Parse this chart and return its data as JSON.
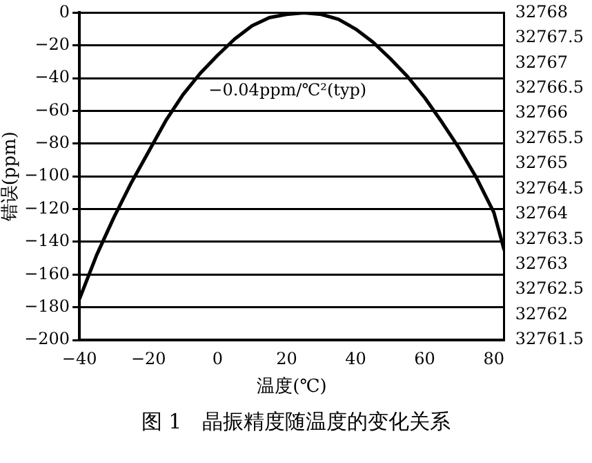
{
  "chart_data": {
    "type": "line",
    "title": "图 1　晶振精度随温度的变化关系",
    "xlabel": "温度(℃)",
    "ylabel": "错误(ppm)",
    "x": [
      -40,
      -35,
      -30,
      -25,
      -20,
      -15,
      -10,
      -5,
      0,
      5,
      10,
      15,
      20,
      25,
      30,
      35,
      40,
      45,
      50,
      55,
      60,
      65,
      70,
      75,
      80,
      83
    ],
    "values": [
      -175,
      -148,
      -125,
      -104,
      -85,
      -66,
      -50,
      -37,
      -26,
      -16,
      -8,
      -3,
      -1,
      0,
      -1,
      -4,
      -10,
      -18,
      -28,
      -39,
      -52,
      -67,
      -83,
      -101,
      -122,
      -145
    ],
    "color": "#000000",
    "marker": "none",
    "line_style": "solid",
    "xlim": [
      -40,
      83
    ],
    "xticks": [
      -40,
      -20,
      0,
      20,
      40,
      60,
      80
    ],
    "ylim": [
      -200,
      0
    ],
    "yticks": [
      -200,
      -180,
      -160,
      -140,
      -120,
      -100,
      -80,
      -60,
      -40,
      -20,
      0
    ],
    "y2lim": [
      32761.5,
      32768
    ],
    "y2ticks": [
      32761.5,
      32762,
      32762.5,
      32763,
      32763.5,
      32764,
      32764.5,
      32765,
      32765.5,
      32766,
      32766.5,
      32767,
      32767.5,
      32768
    ],
    "grid": "y",
    "legend": false,
    "annotations": [
      "−0.04ppm/℃²(typ)"
    ]
  }
}
